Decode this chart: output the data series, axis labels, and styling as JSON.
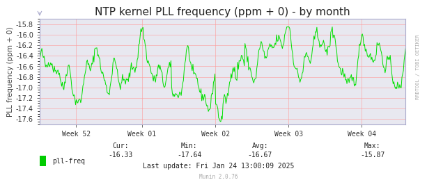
{
  "title": "NTP kernel PLL frequency (ppm + 0) - by month",
  "ylabel": "PLL frequency (ppm + 0)",
  "line_color": "#00e000",
  "line_color_legend": "#00cc00",
  "bg_color": "#ffffff",
  "plot_bg_color": "#e8e8f0",
  "grid_color": "#ff9999",
  "ylim": [
    -17.7,
    -15.7
  ],
  "yticks": [
    -17.6,
    -17.4,
    -17.2,
    -17.0,
    -16.8,
    -16.6,
    -16.4,
    -16.2,
    -16.0,
    -15.8
  ],
  "xtick_labels": [
    "Week 52",
    "Week 01",
    "Week 02",
    "Week 03",
    "Week 04"
  ],
  "cur": "-16.33",
  "min": "-17.64",
  "avg": "-16.67",
  "max": "-15.87",
  "last_update": "Last update: Fri Jan 24 13:00:09 2025",
  "legend_label": "pll-freq",
  "munin_version": "Munin 2.0.76",
  "watermark": "RRDTOOL / TOBI OETIKER",
  "title_fontsize": 11,
  "axis_label_fontsize": 7.5,
  "tick_fontsize": 7,
  "footer_fontsize": 7
}
